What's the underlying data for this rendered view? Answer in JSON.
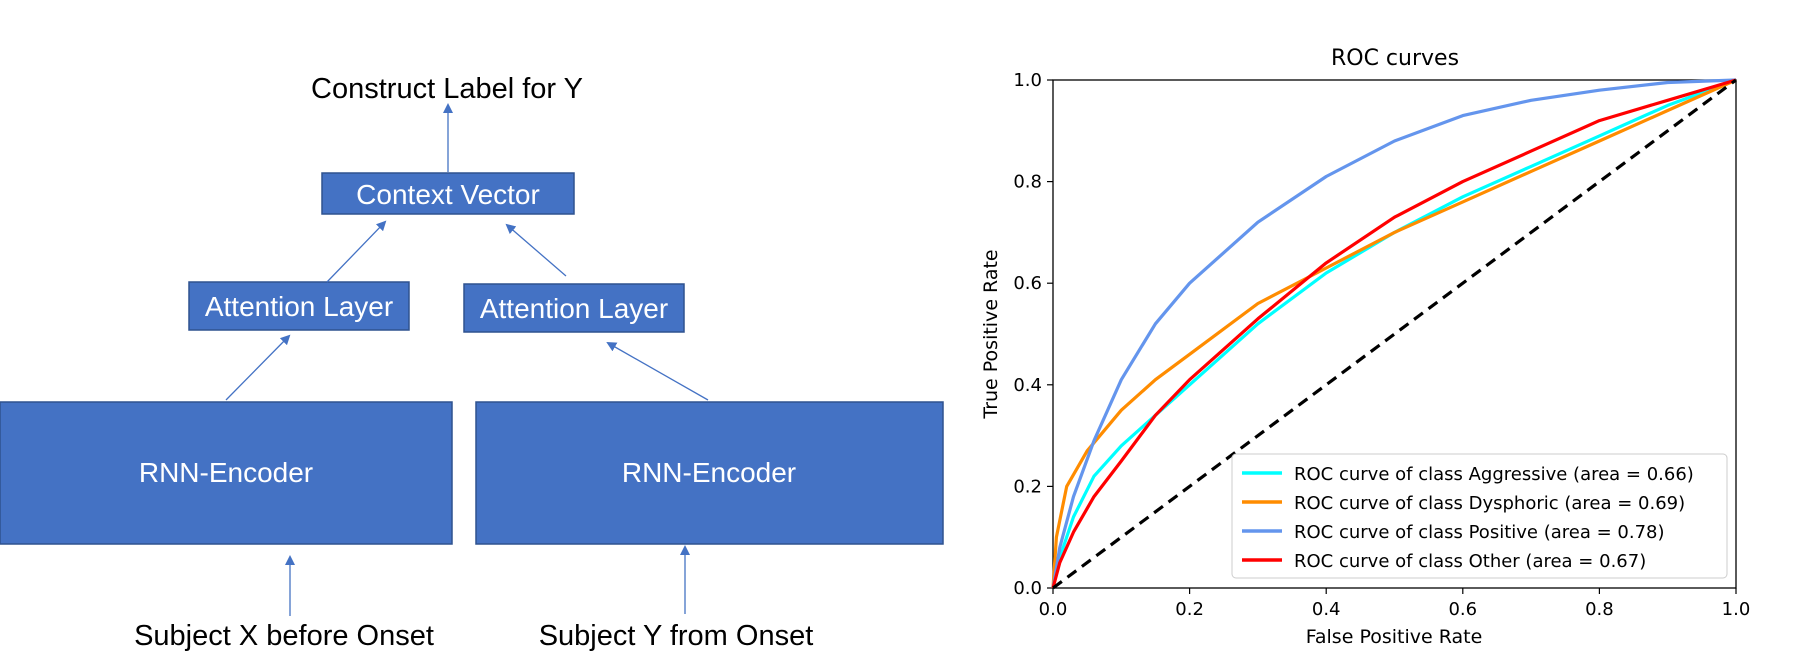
{
  "diagram": {
    "title_label": "Construct Label for  Y",
    "context_vector": "Context Vector",
    "attention_left": "Attention Layer",
    "attention_right": "Attention Layer",
    "encoder_left": "RNN-Encoder",
    "encoder_right": "RNN-Encoder",
    "input_left": "Subject X before Onset",
    "input_right": "Subject Y from Onset",
    "colors": {
      "box": "#4472C4",
      "box_border": "#2F528F",
      "arrow": "#4472C4",
      "box_text": "#ffffff"
    }
  },
  "chart_data": {
    "type": "line",
    "title": "ROC curves",
    "xlabel": "False Positive Rate",
    "ylabel": "True Positive Rate",
    "xlim": [
      0.0,
      1.0
    ],
    "ylim": [
      0.0,
      1.0
    ],
    "xticks": [
      "0.0",
      "0.2",
      "0.4",
      "0.6",
      "0.8",
      "1.0"
    ],
    "yticks": [
      "0.0",
      "0.2",
      "0.4",
      "0.6",
      "0.8",
      "1.0"
    ],
    "legend_position": "lower-right",
    "series": [
      {
        "name": "ROC curve of class Aggressive (area = 0.66)",
        "color": "#00FFFF",
        "x": [
          0,
          0.01,
          0.03,
          0.06,
          0.1,
          0.15,
          0.2,
          0.3,
          0.4,
          0.5,
          0.6,
          0.7,
          0.8,
          0.9,
          1.0
        ],
        "y": [
          0,
          0.06,
          0.14,
          0.22,
          0.28,
          0.34,
          0.4,
          0.52,
          0.62,
          0.7,
          0.77,
          0.83,
          0.89,
          0.95,
          1.0
        ]
      },
      {
        "name": "ROC curve of class Dysphoric (area = 0.69)",
        "color": "#FF8C00",
        "x": [
          0,
          0.005,
          0.02,
          0.05,
          0.1,
          0.15,
          0.2,
          0.3,
          0.4,
          0.5,
          0.6,
          0.7,
          0.8,
          0.9,
          1.0
        ],
        "y": [
          0,
          0.1,
          0.2,
          0.27,
          0.35,
          0.41,
          0.46,
          0.56,
          0.63,
          0.7,
          0.76,
          0.82,
          0.88,
          0.94,
          1.0
        ]
      },
      {
        "name": "ROC curve of class Positive (area = 0.78)",
        "color": "#6495ED",
        "x": [
          0,
          0.01,
          0.03,
          0.06,
          0.1,
          0.15,
          0.2,
          0.3,
          0.4,
          0.5,
          0.6,
          0.7,
          0.8,
          0.9,
          1.0
        ],
        "y": [
          0,
          0.08,
          0.18,
          0.29,
          0.41,
          0.52,
          0.6,
          0.72,
          0.81,
          0.88,
          0.93,
          0.96,
          0.98,
          0.995,
          1.0
        ]
      },
      {
        "name": "ROC curve of class Other (area = 0.67)",
        "color": "#FF0000",
        "x": [
          0,
          0.01,
          0.03,
          0.06,
          0.1,
          0.15,
          0.2,
          0.3,
          0.4,
          0.5,
          0.6,
          0.7,
          0.8,
          0.9,
          1.0
        ],
        "y": [
          0,
          0.05,
          0.11,
          0.18,
          0.25,
          0.34,
          0.41,
          0.53,
          0.64,
          0.73,
          0.8,
          0.86,
          0.92,
          0.96,
          1.0
        ]
      }
    ],
    "diagonal": {
      "x": [
        0,
        1
      ],
      "y": [
        0,
        1
      ],
      "color": "#000000"
    }
  }
}
